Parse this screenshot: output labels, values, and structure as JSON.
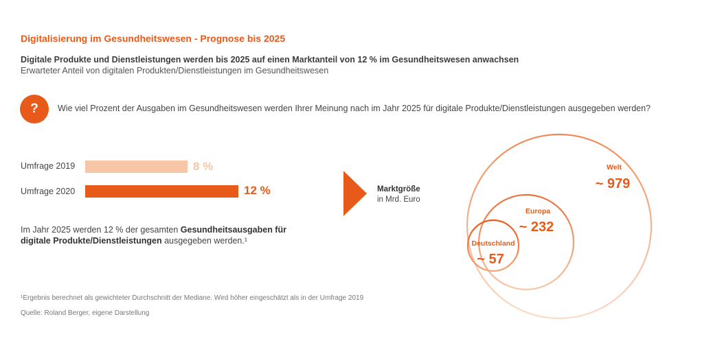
{
  "header": {
    "title": "Digitalisierung im Gesundheitswesen - Prognose bis 2025",
    "headline": "Digitale Produkte und Dienstleistungen werden bis 2025 auf einen Marktanteil von 12 % im Gesundheitswesen anwachsen",
    "subline": "Erwarteter Anteil von digitalen Produkten/Dienstleistungen im Gesundheitswesen"
  },
  "question": {
    "icon_symbol": "?",
    "text": "Wie viel Prozent der Ausgaben im Gesundheitswesen werden Ihrer Meinung nach im Jahr 2025 für digitale Produkte/Dienstleistungen ausgegeben werden?"
  },
  "note": {
    "part1": "Im Jahr 2025 werden 12 % der gesamten ",
    "part2_bold": "Gesundheitsausgaben für digitale Produkte/Dienstleistungen",
    "part3": " ausgegeben werden.¹"
  },
  "footnote": "¹Ergebnis berechnet als gewichteter Durchschnitt der Mediane. Wird höher eingeschätzt als in der Umfrage 2019",
  "source": "Quelle: Roland Berger, eigene Darstellung",
  "market": {
    "label_bold": "Marktgröße",
    "label_unit": "in Mrd. Euro"
  },
  "colors": {
    "accent": "#e85a19",
    "light_accent": "#f6c6a6",
    "text": "#444444"
  },
  "chart_data": [
    {
      "type": "bar",
      "orientation": "horizontal",
      "categories": [
        "Umfrage 2019",
        "Umfrage 2020"
      ],
      "values": [
        8,
        12
      ],
      "value_labels": [
        "8 %",
        "12 %"
      ],
      "unit": "%",
      "colors": [
        "#f6c6a6",
        "#e85a19"
      ],
      "xlim": [
        0,
        12
      ]
    },
    {
      "type": "bubble",
      "layout": "nested-circles",
      "categories": [
        "Deutschland",
        "Europa",
        "Welt"
      ],
      "values": [
        57,
        232,
        979
      ],
      "value_labels": [
        "~ 57",
        "~ 232",
        "~ 979"
      ],
      "unit": "Mrd. Euro"
    }
  ]
}
